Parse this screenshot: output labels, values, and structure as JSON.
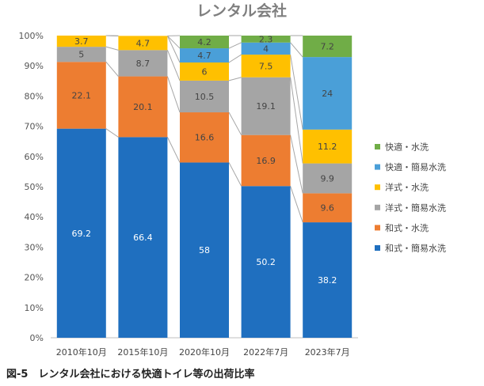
{
  "chart_data": {
    "type": "bar",
    "stacked": true,
    "normalized": true,
    "title": "レンタル会社",
    "categories": [
      "2010年10月",
      "2015年10月",
      "2020年10月",
      "2022年7月",
      "2023年7月"
    ],
    "ylim": [
      0,
      100
    ],
    "yticks": [
      "0%",
      "10%",
      "20%",
      "30%",
      "40%",
      "50%",
      "60%",
      "70%",
      "80%",
      "90%",
      "100%"
    ],
    "series": [
      {
        "name": "和式・簡易水洗",
        "color": "#1f6fbf",
        "label_color": "#ffffff",
        "values": [
          69.2,
          66.4,
          58,
          50.2,
          38.2
        ]
      },
      {
        "name": "和式・水洗",
        "color": "#ed7d31",
        "label_color": "#444444",
        "values": [
          22.1,
          20.1,
          16.6,
          16.9,
          9.6
        ]
      },
      {
        "name": "洋式・簡易水洗",
        "color": "#a5a5a5",
        "label_color": "#444444",
        "values": [
          5,
          8.7,
          10.5,
          19.1,
          9.9
        ]
      },
      {
        "name": "洋式・水洗",
        "color": "#ffc000",
        "label_color": "#444444",
        "values": [
          3.7,
          4.7,
          6,
          7.5,
          11.2
        ]
      },
      {
        "name": "快適・簡易水洗",
        "color": "#4a9fd8",
        "label_color": "#444444",
        "values": [
          0,
          0,
          4.7,
          4,
          24
        ]
      },
      {
        "name": "快適・水洗",
        "color": "#70ad47",
        "label_color": "#444444",
        "values": [
          0,
          0,
          4.2,
          2.3,
          7.2
        ]
      }
    ],
    "legend_position": "right",
    "grid": false,
    "series_lines": true
  },
  "caption": "図-5　レンタル会社における快適トイレ等の出荷比率"
}
